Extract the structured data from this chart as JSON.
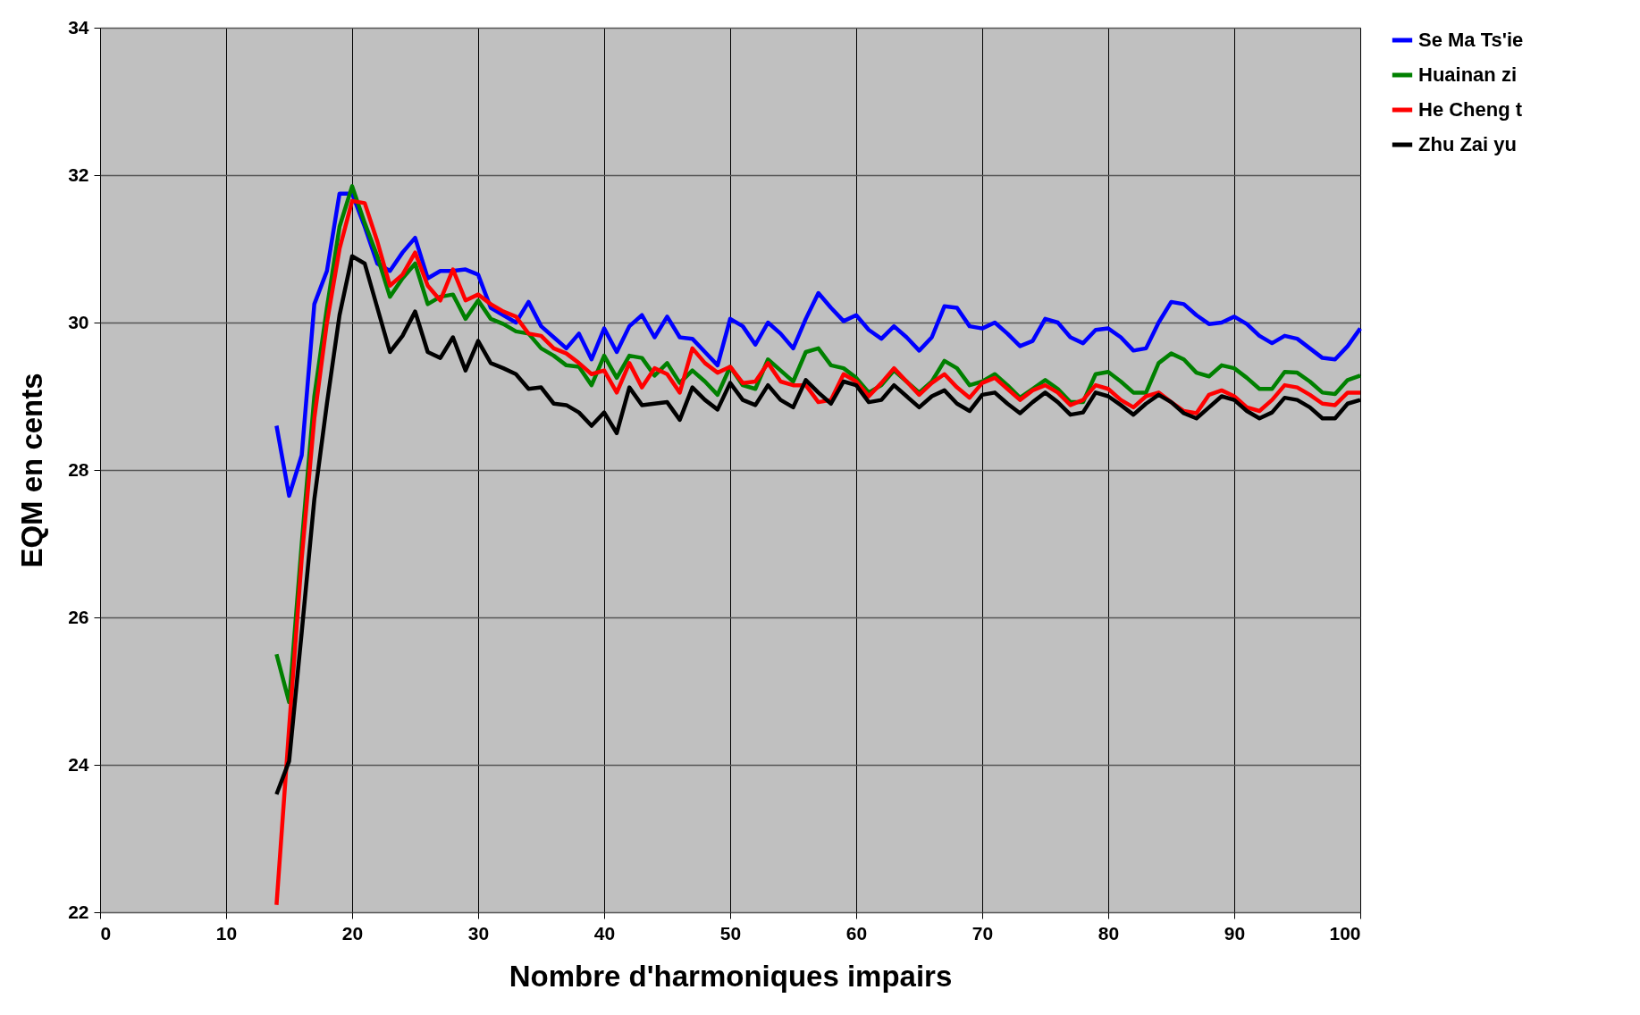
{
  "chart_data": {
    "type": "line",
    "xlabel": "Nombre d'harmoniques  impairs",
    "ylabel": "EQM en cents",
    "x": [
      14,
      15,
      16,
      17,
      18,
      19,
      20,
      21,
      22,
      23,
      24,
      25,
      26,
      27,
      28,
      29,
      30,
      31,
      32,
      33,
      34,
      35,
      36,
      37,
      38,
      39,
      40,
      41,
      42,
      43,
      44,
      45,
      46,
      47,
      48,
      49,
      50,
      51,
      52,
      53,
      54,
      55,
      56,
      57,
      58,
      59,
      60,
      61,
      62,
      63,
      64,
      65,
      66,
      67,
      68,
      69,
      70,
      71,
      72,
      73,
      74,
      75,
      76,
      77,
      78,
      79,
      80,
      81,
      82,
      83,
      84,
      85,
      86,
      87,
      88,
      89,
      90,
      91,
      92,
      93,
      94,
      95,
      96,
      97,
      98,
      99,
      100
    ],
    "xlim": [
      0,
      100
    ],
    "xticks": [
      0,
      10,
      20,
      30,
      40,
      50,
      60,
      70,
      80,
      90,
      100
    ],
    "ylim": [
      22,
      34
    ],
    "yticks": [
      22,
      24,
      26,
      28,
      30,
      32,
      34
    ],
    "grid": true,
    "legend": "right",
    "line_style": "solid",
    "series": [
      {
        "name": "Se Ma Ts'ie",
        "color": "#0000ff",
        "values": [
          28.6,
          27.65,
          28.2,
          30.25,
          30.7,
          31.75,
          31.75,
          31.3,
          30.8,
          30.7,
          30.95,
          31.15,
          30.6,
          30.7,
          30.7,
          30.72,
          30.65,
          30.2,
          30.1,
          30.0,
          30.28,
          29.95,
          29.8,
          29.65,
          29.85,
          29.5,
          29.92,
          29.6,
          29.95,
          30.1,
          29.8,
          30.08,
          29.8,
          29.78,
          29.6,
          29.42,
          30.05,
          29.95,
          29.7,
          30.0,
          29.85,
          29.65,
          30.05,
          30.4,
          30.2,
          30.02,
          30.1,
          29.9,
          29.78,
          29.95,
          29.8,
          29.62,
          29.8,
          30.22,
          30.2,
          29.95,
          29.92,
          30.0,
          29.85,
          29.68,
          29.75,
          30.05,
          30.0,
          29.8,
          29.72,
          29.9,
          29.92,
          29.8,
          29.62,
          29.65,
          30.0,
          30.28,
          30.25,
          30.1,
          29.98,
          30.0,
          30.08,
          29.98,
          29.82,
          29.72,
          29.82,
          29.78,
          29.65,
          29.52,
          29.5,
          29.68,
          29.92
        ]
      },
      {
        "name": "Huainan zi",
        "color": "#008000",
        "values": [
          25.5,
          24.85,
          27.0,
          29.0,
          30.2,
          31.3,
          31.85,
          31.35,
          30.9,
          30.35,
          30.6,
          30.8,
          30.25,
          30.35,
          30.38,
          30.05,
          30.3,
          30.05,
          29.98,
          29.88,
          29.85,
          29.65,
          29.55,
          29.42,
          29.4,
          29.15,
          29.55,
          29.25,
          29.55,
          29.52,
          29.28,
          29.45,
          29.18,
          29.35,
          29.2,
          29.02,
          29.4,
          29.15,
          29.1,
          29.5,
          29.35,
          29.2,
          29.6,
          29.65,
          29.42,
          29.38,
          29.25,
          29.05,
          29.15,
          29.35,
          29.2,
          29.05,
          29.2,
          29.48,
          29.38,
          29.15,
          29.2,
          29.3,
          29.15,
          28.98,
          29.1,
          29.22,
          29.1,
          28.92,
          28.92,
          29.3,
          29.33,
          29.2,
          29.05,
          29.05,
          29.45,
          29.58,
          29.5,
          29.32,
          29.27,
          29.42,
          29.38,
          29.25,
          29.1,
          29.1,
          29.33,
          29.32,
          29.2,
          29.05,
          29.03,
          29.22,
          29.28
        ]
      },
      {
        "name": "He Cheng t",
        "color": "#ff0000",
        "values": [
          22.1,
          24.5,
          26.8,
          28.7,
          30.0,
          31.0,
          31.65,
          31.62,
          31.1,
          30.5,
          30.65,
          30.95,
          30.5,
          30.3,
          30.72,
          30.3,
          30.38,
          30.25,
          30.15,
          30.08,
          29.85,
          29.82,
          29.65,
          29.58,
          29.45,
          29.3,
          29.35,
          29.05,
          29.45,
          29.12,
          29.38,
          29.3,
          29.05,
          29.65,
          29.45,
          29.32,
          29.4,
          29.18,
          29.2,
          29.45,
          29.2,
          29.15,
          29.15,
          28.92,
          28.95,
          29.3,
          29.2,
          29.0,
          29.18,
          29.38,
          29.2,
          29.02,
          29.18,
          29.3,
          29.12,
          28.98,
          29.18,
          29.25,
          29.1,
          28.95,
          29.08,
          29.15,
          29.05,
          28.88,
          28.95,
          29.15,
          29.1,
          28.95,
          28.85,
          29.0,
          29.05,
          28.92,
          28.8,
          28.77,
          29.02,
          29.08,
          29.0,
          28.85,
          28.8,
          28.95,
          29.15,
          29.12,
          29.02,
          28.9,
          28.88,
          29.05,
          29.05
        ]
      },
      {
        "name": "Zhu Zai yu",
        "color": "#000000",
        "values": [
          23.6,
          24.05,
          25.8,
          27.6,
          28.9,
          30.1,
          30.9,
          30.8,
          30.2,
          29.6,
          29.82,
          30.15,
          29.6,
          29.52,
          29.8,
          29.35,
          29.75,
          29.45,
          29.38,
          29.3,
          29.1,
          29.12,
          28.9,
          28.88,
          28.78,
          28.6,
          28.78,
          28.5,
          29.12,
          28.88,
          28.9,
          28.92,
          28.68,
          29.12,
          28.95,
          28.82,
          29.18,
          28.95,
          28.88,
          29.15,
          28.95,
          28.85,
          29.22,
          29.05,
          28.9,
          29.2,
          29.15,
          28.92,
          28.95,
          29.15,
          29.0,
          28.85,
          29.0,
          29.08,
          28.9,
          28.8,
          29.02,
          29.05,
          28.9,
          28.77,
          28.92,
          29.05,
          28.92,
          28.75,
          28.78,
          29.05,
          29.0,
          28.88,
          28.75,
          28.9,
          29.02,
          28.92,
          28.77,
          28.7,
          28.85,
          29.0,
          28.95,
          28.8,
          28.7,
          28.78,
          28.98,
          28.95,
          28.85,
          28.7,
          28.7,
          28.9,
          28.95
        ]
      }
    ]
  }
}
